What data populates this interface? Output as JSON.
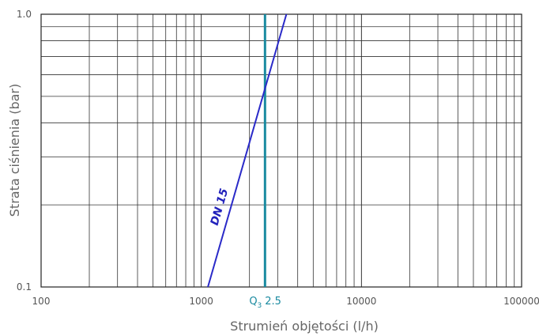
{
  "chart_data": {
    "type": "line",
    "title": "",
    "xlabel": "Strumień objętości (l/h)",
    "ylabel": "Strata ciśnienia (bar)",
    "xscale": "log",
    "yscale": "log",
    "xlim": [
      100,
      100000
    ],
    "ylim": [
      0.1,
      1.0
    ],
    "grid": true,
    "x_ticks": [
      {
        "value": 100,
        "label": "100"
      },
      {
        "value": 1000,
        "label": "1000"
      },
      {
        "value": 10000,
        "label": "10000"
      },
      {
        "value": 100000,
        "label": "100000"
      }
    ],
    "y_ticks": [
      {
        "value": 0.1,
        "label": "0.1"
      },
      {
        "value": 1.0,
        "label": "1.0"
      }
    ],
    "series": [
      {
        "name": "DN 15",
        "color": "#2a2ac8",
        "x": [
          1100,
          3400
        ],
        "y": [
          0.1,
          1.0
        ]
      }
    ],
    "annotations": [
      {
        "type": "vertical-line",
        "x": 2500,
        "label_main": "Q",
        "label_sub": "3",
        "label_value": "2.5",
        "color": "#1a8aa0"
      }
    ]
  }
}
